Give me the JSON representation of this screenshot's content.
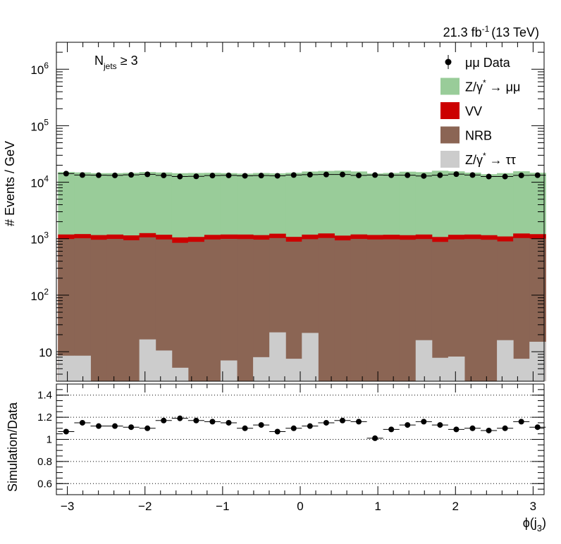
{
  "chart_data": [
    {
      "type": "bar",
      "stacked": true,
      "ylabel": "# Events / GeV",
      "ylog": true,
      "ylim": [
        3,
        3000000
      ],
      "luminosity": {
        "value": "21.3 fb",
        "sup": "-1",
        "energy": "(13 TeV)"
      },
      "selection": {
        "base": "N",
        "sub": "jets",
        "rest": " ≥ 3"
      },
      "x": [
        -3.0159,
        -2.8064,
        -2.597,
        -2.3876,
        -2.1782,
        -1.9687,
        -1.7593,
        -1.5499,
        -1.3404,
        -1.131,
        -0.9216,
        -0.7121,
        -0.5027,
        -0.2933,
        -0.0838,
        0.1256,
        0.335,
        0.5445,
        0.7539,
        0.9633,
        1.1728,
        1.3822,
        1.5916,
        1.8011,
        2.0105,
        2.2199,
        2.4294,
        2.6388,
        2.8482,
        3.0577
      ],
      "xlim": [
        -3.1416,
        3.1416
      ],
      "xticks": [
        -3,
        -2,
        -1,
        0,
        1,
        2,
        3
      ],
      "yticks": [
        {
          "v": 10,
          "label": "10"
        },
        {
          "v": 100,
          "label": "10",
          "sup": "2"
        },
        {
          "v": 1000,
          "label": "10",
          "sup": "3"
        },
        {
          "v": 10000,
          "label": "10",
          "sup": "4"
        },
        {
          "v": 100000,
          "label": "10",
          "sup": "5"
        },
        {
          "v": 1000000,
          "label": "10",
          "sup": "6"
        }
      ],
      "series": [
        {
          "name": "Z/γ* → ττ",
          "legend": {
            "pre": "Z/γ",
            "sup": "*",
            "post": " → ττ"
          },
          "color": "#cccccc",
          "values": [
            8.5,
            8.5,
            0,
            0,
            0,
            16.5,
            10.5,
            5.2,
            0,
            0,
            7,
            0,
            8,
            22,
            7.5,
            21.5,
            0,
            0,
            0,
            0,
            0,
            0,
            16,
            7.8,
            8.2,
            0,
            0,
            16,
            7.5,
            15
          ]
        },
        {
          "name": "NRB",
          "legend": {
            "pre": "NRB"
          },
          "color": "#8b6554",
          "values": [
            980,
            1010,
            960,
            990,
            940,
            1040,
            960,
            840,
            880,
            970,
            985,
            985,
            955,
            1005,
            880,
            960,
            1030,
            935,
            990,
            970,
            975,
            960,
            970,
            870,
            965,
            985,
            960,
            880,
            1020,
            985
          ]
        },
        {
          "name": "VV",
          "legend": {
            "pre": "VV"
          },
          "color": "#cc0000",
          "values": [
            200,
            190,
            200,
            195,
            205,
            200,
            205,
            210,
            195,
            200,
            195,
            200,
            195,
            200,
            190,
            200,
            210,
            200,
            200,
            195,
            200,
            195,
            200,
            195,
            200,
            200,
            195,
            200,
            210,
            205
          ]
        },
        {
          "name": "Z/γ* → μμ",
          "legend": {
            "pre": "Z/γ",
            "sup": "*",
            "post": " → μμ"
          },
          "color": "#99cc99",
          "values": [
            14000,
            13700,
            13300,
            13300,
            13500,
            13900,
            13700,
            13400,
            13500,
            13500,
            13300,
            13000,
            13400,
            13100,
            13600,
            14300,
            14600,
            14900,
            14300,
            13100,
            13400,
            14200,
            13900,
            14900,
            14400,
            13600,
            12700,
            13400,
            14400,
            13500
          ]
        }
      ],
      "data": {
        "name": "μμ Data",
        "legend": {
          "pre": "μμ Data"
        },
        "values": [
          14200,
          13400,
          13300,
          13200,
          13500,
          13800,
          13200,
          12600,
          12700,
          13100,
          13200,
          13000,
          13100,
          13000,
          13400,
          13600,
          13700,
          13700,
          13200,
          13400,
          13300,
          13300,
          12900,
          13300,
          13900,
          13400,
          12600,
          12600,
          13200,
          13300
        ]
      }
    },
    {
      "type": "scatter",
      "ylabel": "Simulation/Data",
      "xlabel": {
        "base": "ϕ(j",
        "sub": "3",
        "close": ")"
      },
      "ylim": [
        0.5,
        1.5
      ],
      "yticks": [
        0.6,
        0.8,
        1,
        1.2,
        1.4
      ],
      "ytick_labels": [
        "0.6",
        "0.8",
        "1",
        "1.2",
        "1.4"
      ],
      "gridlines": [
        0.6,
        0.8,
        1.0,
        1.2,
        1.4
      ],
      "xticks": [
        -3,
        -2,
        -1,
        0,
        1,
        2,
        3
      ],
      "xtick_labels": [
        "−3",
        "−2",
        "−1",
        "0",
        "1",
        "2",
        "3"
      ],
      "values": [
        1.07,
        1.15,
        1.12,
        1.12,
        1.11,
        1.1,
        1.17,
        1.19,
        1.17,
        1.16,
        1.15,
        1.1,
        1.13,
        1.07,
        1.1,
        1.12,
        1.15,
        1.17,
        1.16,
        1.01,
        1.09,
        1.13,
        1.16,
        1.13,
        1.09,
        1.1,
        1.08,
        1.1,
        1.16,
        1.11
      ],
      "errors": [
        0.015,
        0.015,
        0.015,
        0.015,
        0.015,
        0.015,
        0.015,
        0.015,
        0.015,
        0.015,
        0.015,
        0.015,
        0.015,
        0.015,
        0.015,
        0.015,
        0.015,
        0.015,
        0.015,
        0.015,
        0.015,
        0.015,
        0.015,
        0.015,
        0.015,
        0.015,
        0.015,
        0.015,
        0.015,
        0.015
      ]
    }
  ]
}
